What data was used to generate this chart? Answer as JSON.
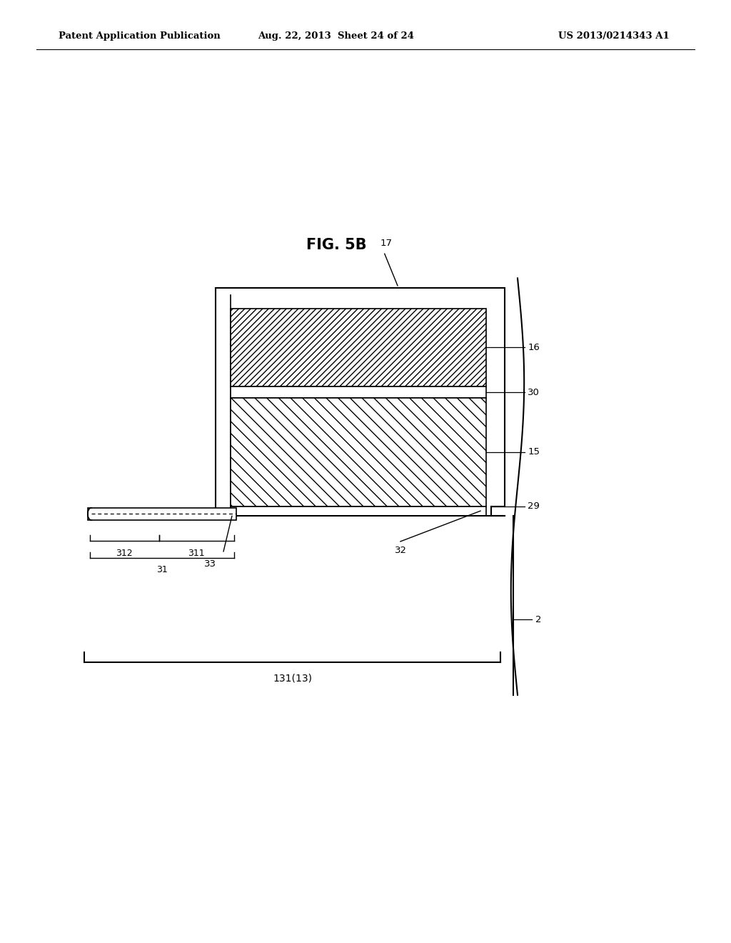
{
  "title": "FIG. 5B",
  "header_left": "Patent Application Publication",
  "header_mid": "Aug. 22, 2013  Sheet 24 of 24",
  "header_right": "US 2013/0214343 A1",
  "bg_color": "#ffffff",
  "line_color": "#000000"
}
